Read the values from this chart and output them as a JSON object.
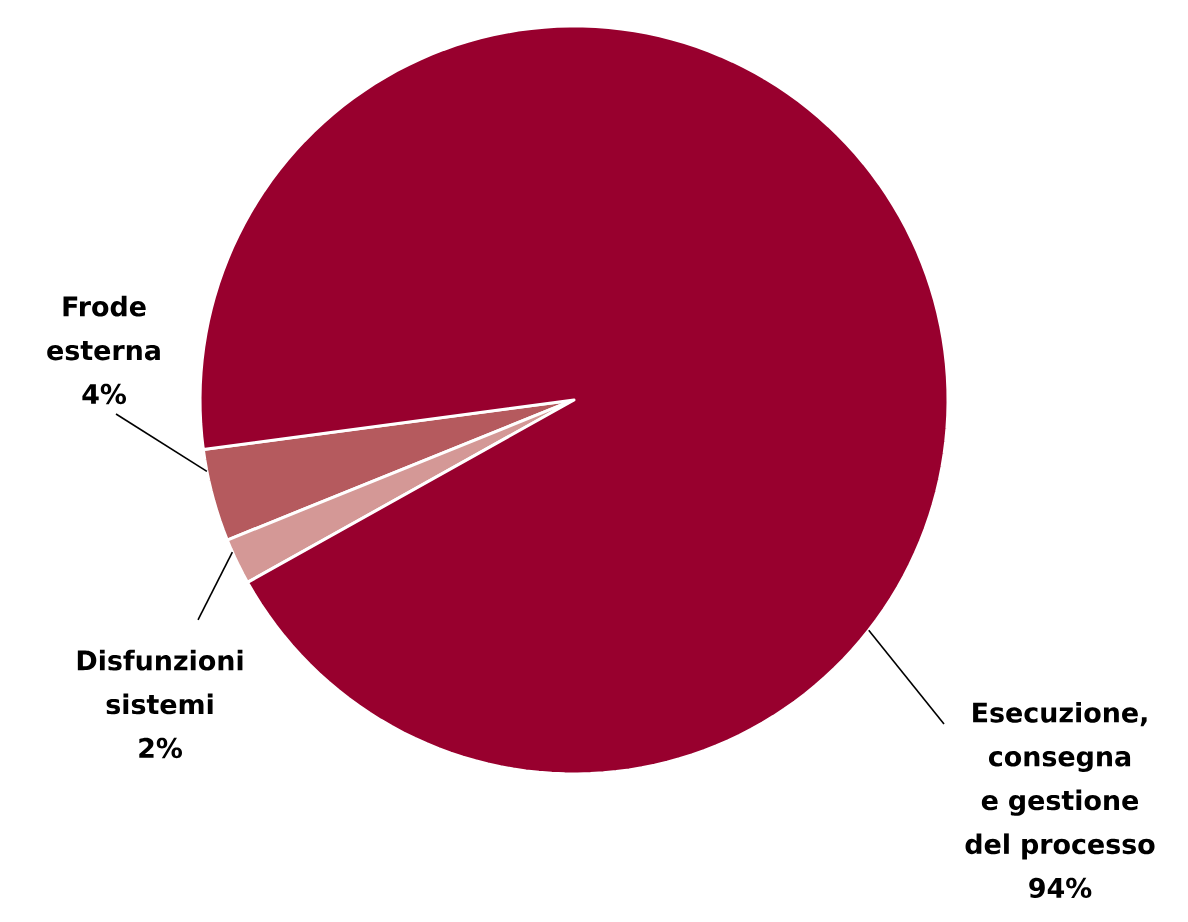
{
  "chart_data": {
    "type": "pie",
    "categories": [
      "Frode esterna",
      "Disfunzioni sistemi",
      "Esecuzione, consegna e gestione del processo"
    ],
    "values": [
      4,
      2,
      94
    ],
    "value_labels": [
      "4%",
      "2%",
      "94%"
    ],
    "colors": [
      "#b55a5e",
      "#d49896",
      "#98002e"
    ]
  }
}
